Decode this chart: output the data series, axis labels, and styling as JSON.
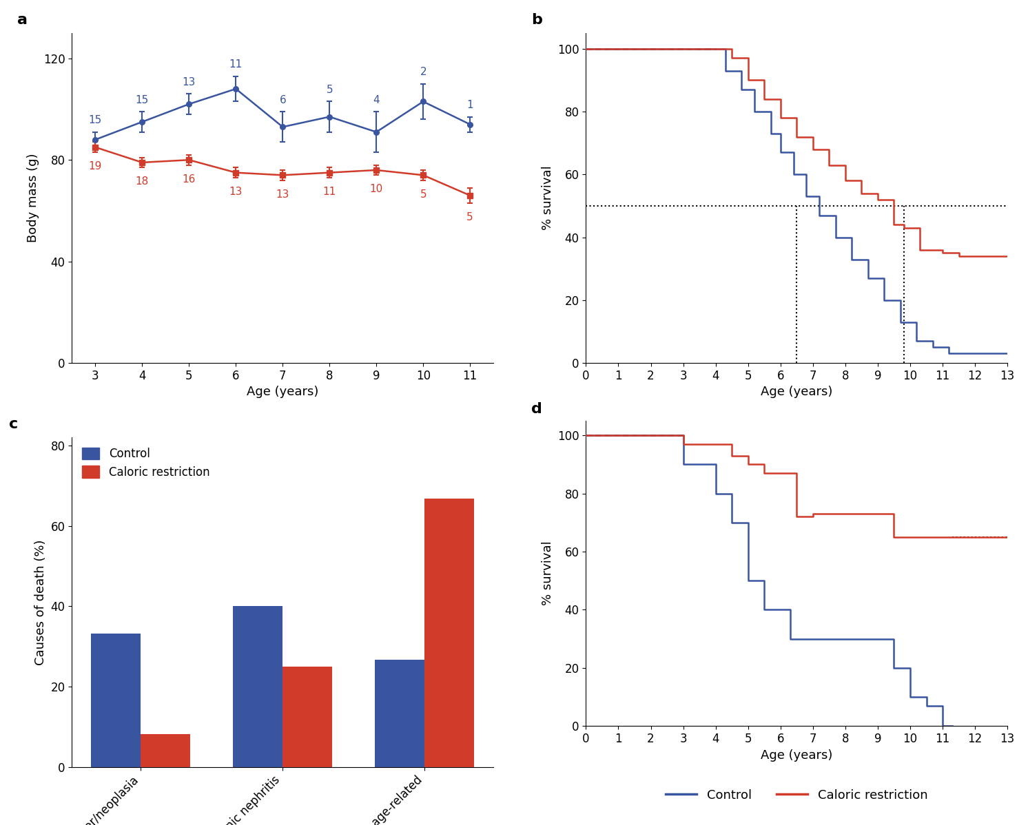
{
  "panel_a": {
    "blue_x": [
      3,
      4,
      5,
      6,
      7,
      8,
      9,
      10,
      11
    ],
    "blue_y": [
      88,
      95,
      102,
      108,
      93,
      97,
      91,
      103,
      94
    ],
    "blue_yerr": [
      3,
      4,
      4,
      5,
      6,
      6,
      8,
      7,
      3
    ],
    "blue_n": [
      15,
      15,
      13,
      11,
      6,
      5,
      4,
      2,
      1
    ],
    "red_x": [
      3,
      4,
      5,
      6,
      7,
      8,
      9,
      10,
      11
    ],
    "red_y": [
      85,
      79,
      80,
      75,
      74,
      75,
      76,
      74,
      66
    ],
    "red_yerr": [
      2,
      2,
      2,
      2,
      2,
      2,
      2,
      2,
      3
    ],
    "red_n": [
      19,
      18,
      16,
      13,
      13,
      11,
      10,
      5,
      5
    ],
    "ylabel": "Body mass (g)",
    "xlabel": "Age (years)",
    "ylim": [
      0,
      130
    ],
    "yticks": [
      0,
      40,
      80,
      120
    ],
    "xticks": [
      3,
      4,
      5,
      6,
      7,
      8,
      9,
      10,
      11
    ]
  },
  "panel_b": {
    "blue_x": [
      0,
      4,
      4.3,
      4.3,
      4.8,
      4.8,
      5.2,
      5.2,
      5.7,
      5.7,
      6.0,
      6.0,
      6.4,
      6.4,
      6.8,
      6.8,
      7.2,
      7.2,
      7.7,
      7.7,
      8.2,
      8.2,
      8.7,
      8.7,
      9.2,
      9.2,
      9.7,
      9.7,
      10.2,
      10.2,
      10.7,
      10.7,
      11.2,
      11.2,
      13
    ],
    "blue_y": [
      100,
      100,
      100,
      93,
      93,
      87,
      87,
      80,
      80,
      73,
      73,
      67,
      67,
      60,
      60,
      53,
      53,
      47,
      47,
      40,
      40,
      33,
      33,
      27,
      27,
      20,
      20,
      13,
      13,
      7,
      7,
      5,
      5,
      3,
      3
    ],
    "red_x": [
      0,
      4,
      4.5,
      4.5,
      5.0,
      5.0,
      5.5,
      5.5,
      6.0,
      6.0,
      6.5,
      6.5,
      7.0,
      7.0,
      7.5,
      7.5,
      8.0,
      8.0,
      8.5,
      8.5,
      9.0,
      9.0,
      9.5,
      9.5,
      9.8,
      9.8,
      10.3,
      10.3,
      11.0,
      11.0,
      11.5,
      11.5,
      12.0,
      12.0,
      13
    ],
    "red_y": [
      100,
      100,
      100,
      97,
      97,
      90,
      90,
      84,
      84,
      78,
      78,
      72,
      72,
      68,
      68,
      63,
      63,
      58,
      58,
      54,
      54,
      52,
      52,
      44,
      44,
      43,
      43,
      36,
      36,
      35,
      35,
      34,
      34,
      34,
      34
    ],
    "dashed_end_x": 4,
    "median_blue_x": 6.5,
    "median_red_x": 9.8,
    "ylabel": "% survival",
    "xlabel": "Age (years)",
    "ylim": [
      0,
      105
    ],
    "yticks": [
      0,
      20,
      40,
      60,
      80,
      100
    ],
    "xticks": [
      0,
      1,
      2,
      3,
      4,
      5,
      6,
      7,
      8,
      9,
      10,
      11,
      12,
      13
    ]
  },
  "panel_c": {
    "categories": [
      "Cancer/neoplasia",
      "Chronic nephritis",
      "Non age-related"
    ],
    "blue_values": [
      33.3,
      40.0,
      26.7
    ],
    "red_values": [
      8.3,
      25.0,
      66.7
    ],
    "ylabel": "Causes of death (%)",
    "ylim": [
      0,
      82
    ],
    "yticks": [
      0,
      20,
      40,
      60,
      80
    ],
    "bar_width": 0.35
  },
  "panel_d": {
    "blue_x": [
      0,
      3,
      3.5,
      3.5,
      4.0,
      4.0,
      4.5,
      4.5,
      5.0,
      5.0,
      5.5,
      5.5,
      6.3,
      6.3,
      6.8,
      6.8,
      7.5,
      7.5,
      8.0,
      8.0,
      9.5,
      9.5,
      10.0,
      10.0,
      10.5,
      10.5,
      11.0,
      11.0,
      11.5,
      11.5,
      13
    ],
    "blue_y": [
      100,
      100,
      100,
      90,
      90,
      80,
      80,
      70,
      70,
      50,
      50,
      40,
      40,
      30,
      30,
      40,
      40,
      30,
      30,
      20,
      20,
      10,
      10,
      0,
      0,
      0,
      0,
      0,
      0,
      0,
      0
    ],
    "red_x": [
      0,
      3,
      4.0,
      4.0,
      4.5,
      4.5,
      5.0,
      5.0,
      5.5,
      5.5,
      6.5,
      6.5,
      7.0,
      7.0,
      7.5,
      7.5,
      9.5,
      9.5,
      10.0,
      10.0,
      11.3,
      11.3,
      13
    ],
    "red_y": [
      100,
      100,
      100,
      97,
      97,
      93,
      93,
      90,
      90,
      87,
      87,
      72,
      72,
      73,
      73,
      65,
      65,
      65,
      65,
      65,
      65,
      65,
      65
    ],
    "dashed_end_x": 3,
    "dashed_end_x_red": 11.3,
    "ylabel": "% survival",
    "xlabel": "Age (years)",
    "ylim": [
      0,
      105
    ],
    "yticks": [
      0,
      20,
      40,
      60,
      80,
      100
    ],
    "xticks": [
      0,
      1,
      2,
      3,
      4,
      5,
      6,
      7,
      8,
      9,
      10,
      11,
      12,
      13
    ]
  },
  "colors": {
    "blue": "#3955a0",
    "red": "#d13b2a"
  }
}
